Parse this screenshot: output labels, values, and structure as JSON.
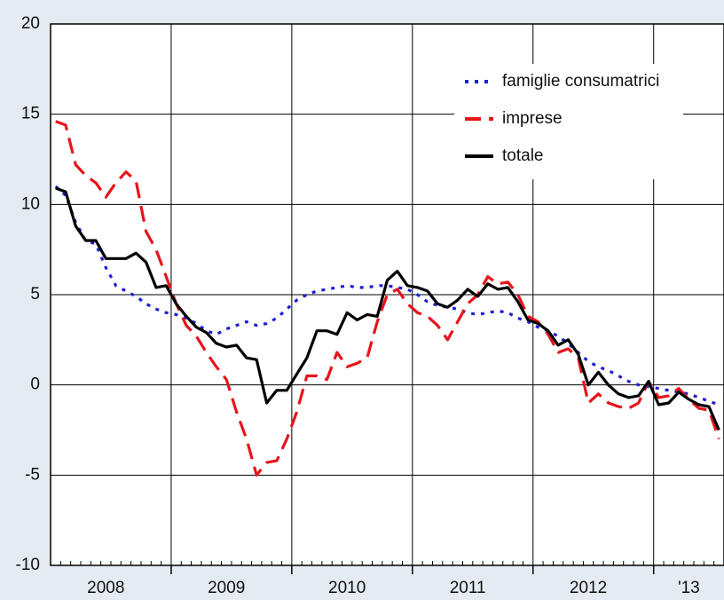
{
  "chart_data": {
    "type": "line",
    "categories": [
      null,
      null,
      null,
      null,
      null,
      "2008",
      null,
      null,
      null,
      null,
      null,
      null,
      null,
      null,
      null,
      null,
      null,
      "2009",
      null,
      null,
      null,
      null,
      null,
      null,
      null,
      null,
      null,
      null,
      null,
      "2010",
      null,
      null,
      null,
      null,
      null,
      null,
      null,
      null,
      null,
      null,
      null,
      "2011",
      null,
      null,
      null,
      null,
      null,
      null,
      null,
      null,
      null,
      null,
      null,
      "2012",
      null,
      null,
      null,
      null,
      null,
      null,
      null,
      null,
      null,
      "'13",
      null,
      null,
      null
    ],
    "series": [
      {
        "name": "famiglie consumatrici",
        "color": "#1f1fd6",
        "linestyle": "dotted",
        "values": [
          11.0,
          10.5,
          9.0,
          8.0,
          7.8,
          6.5,
          5.5,
          5.2,
          4.9,
          4.5,
          4.2,
          4.0,
          3.9,
          3.7,
          3.4,
          3.0,
          2.8,
          3.1,
          3.3,
          3.5,
          3.3,
          3.4,
          3.7,
          4.2,
          4.7,
          5.0,
          5.2,
          5.3,
          5.4,
          5.5,
          5.4,
          5.4,
          5.5,
          5.5,
          5.4,
          5.3,
          5.0,
          4.6,
          4.4,
          4.3,
          4.2,
          4.0,
          3.9,
          4.0,
          4.1,
          4.0,
          3.7,
          3.5,
          3.2,
          3.0,
          2.7,
          2.3,
          1.8,
          1.3,
          1.0,
          0.8,
          0.5,
          0.2,
          0.0,
          -0.1,
          -0.2,
          -0.3,
          -0.4,
          -0.5,
          -0.7,
          -0.9,
          -1.1
        ]
      },
      {
        "name": "imprese",
        "color": "#e8141b",
        "linestyle": "dashed",
        "values": [
          14.6,
          14.4,
          12.2,
          11.6,
          11.2,
          10.4,
          11.2,
          11.8,
          11.3,
          8.5,
          7.5,
          6.0,
          4.5,
          3.3,
          2.7,
          1.8,
          1.0,
          0.3,
          -1.5,
          -3.0,
          -5.0,
          -4.3,
          -4.2,
          -3.0,
          -1.5,
          0.5,
          0.5,
          0.3,
          1.8,
          1.0,
          1.2,
          1.5,
          3.5,
          5.0,
          5.3,
          4.5,
          4.0,
          3.8,
          3.3,
          2.5,
          3.5,
          4.5,
          5.0,
          6.0,
          5.6,
          5.7,
          5.0,
          3.8,
          3.5,
          2.8,
          1.8,
          2.0,
          1.5,
          -1.0,
          -0.5,
          -1.0,
          -1.2,
          -1.3,
          -1.0,
          0.2,
          -0.7,
          -0.6,
          -0.2,
          -0.8,
          -1.3,
          -1.4,
          -3.0
        ]
      },
      {
        "name": "totale",
        "color": "#000000",
        "linestyle": "solid",
        "values": [
          10.9,
          10.7,
          8.8,
          8.0,
          8.0,
          7.0,
          7.0,
          7.0,
          7.3,
          6.8,
          5.4,
          5.5,
          4.5,
          3.8,
          3.2,
          2.9,
          2.3,
          2.1,
          2.2,
          1.5,
          1.4,
          -1.0,
          -0.3,
          -0.3,
          0.6,
          1.5,
          3.0,
          3.0,
          2.8,
          4.0,
          3.6,
          3.9,
          3.8,
          5.8,
          6.3,
          5.5,
          5.4,
          5.2,
          4.5,
          4.3,
          4.7,
          5.3,
          4.9,
          5.6,
          5.3,
          5.4,
          4.6,
          3.6,
          3.4,
          3.0,
          2.2,
          2.5,
          1.7,
          0.0,
          0.7,
          0.0,
          -0.5,
          -0.7,
          -0.6,
          0.2,
          -1.1,
          -1.0,
          -0.4,
          -0.8,
          -1.1,
          -1.2,
          -2.5
        ]
      }
    ],
    "ylim": [
      -10,
      20
    ],
    "yticks": [
      -10,
      -5,
      0,
      5,
      10,
      15,
      20
    ],
    "grid": true,
    "legend": "upper right"
  }
}
